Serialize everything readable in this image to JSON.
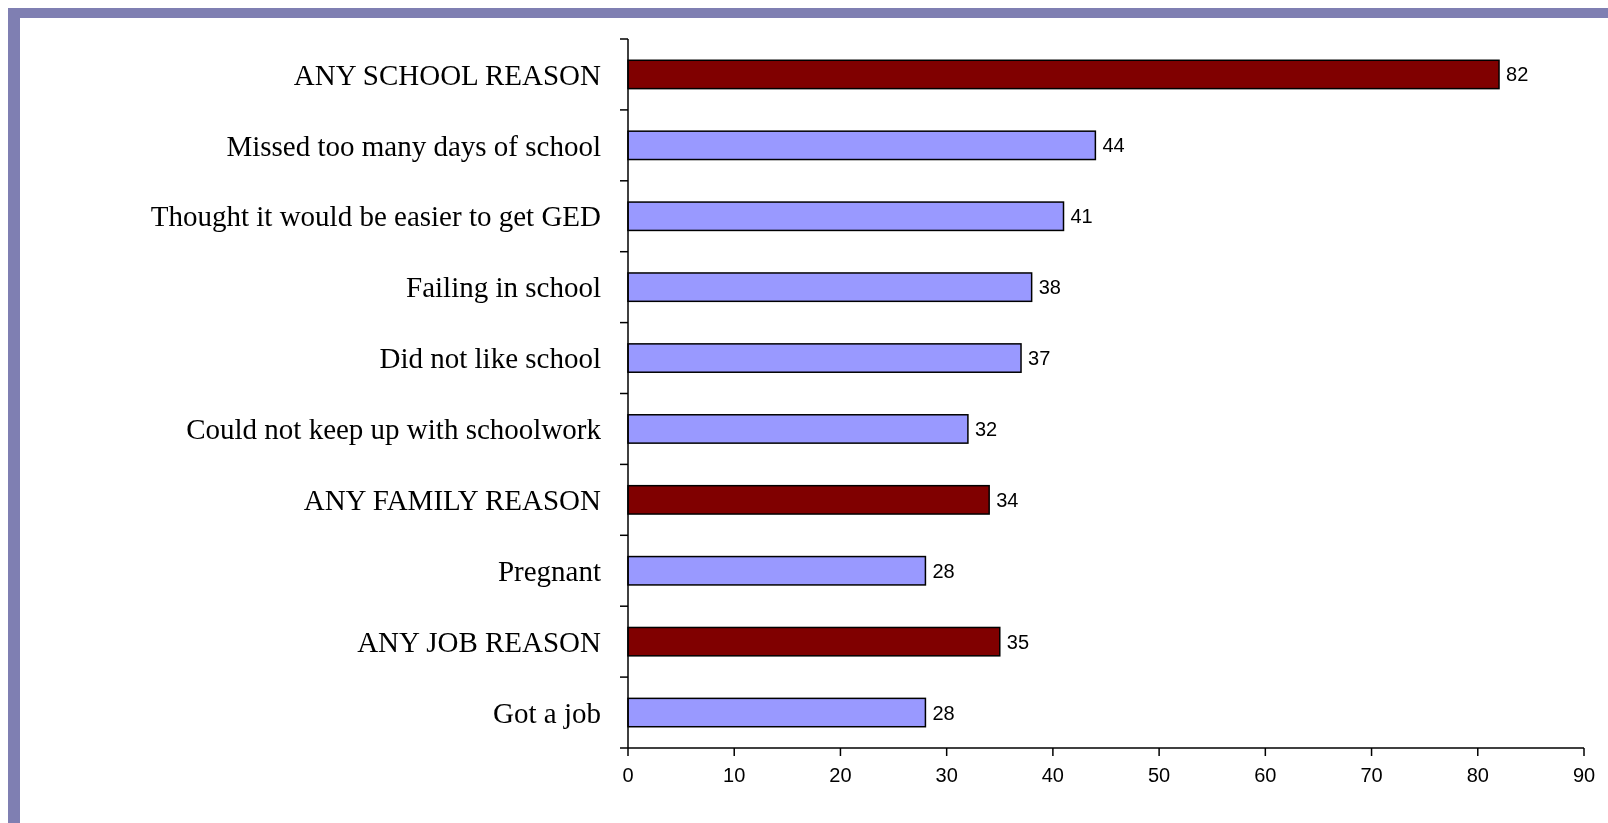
{
  "chart_data": {
    "type": "bar",
    "orientation": "horizontal",
    "categories": [
      "ANY SCHOOL REASON",
      "Missed too many days of school",
      "Thought it would be easier to get GED",
      "Failing in school",
      "Did not like school",
      "Could not keep up with schoolwork",
      "ANY FAMILY REASON",
      "Pregnant",
      "ANY JOB REASON",
      "Got a job"
    ],
    "values": [
      82,
      44,
      41,
      38,
      37,
      32,
      34,
      28,
      35,
      28
    ],
    "colors": [
      "#800000",
      "#9999ff",
      "#9999ff",
      "#9999ff",
      "#9999ff",
      "#9999ff",
      "#800000",
      "#9999ff",
      "#800000",
      "#9999ff"
    ],
    "xlim": [
      0,
      90
    ],
    "xticks": [
      0,
      10,
      20,
      30,
      40,
      50,
      60,
      70,
      80,
      90
    ],
    "data_labels": true
  }
}
